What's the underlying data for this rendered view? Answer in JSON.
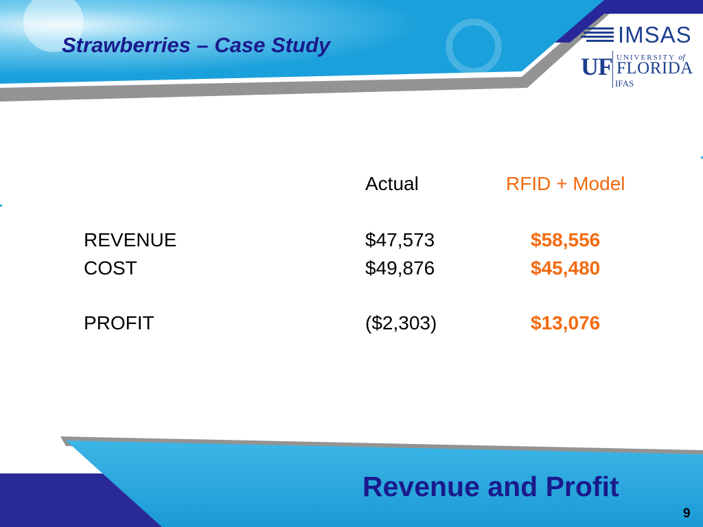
{
  "slide": {
    "title": "Strawberries – Case Study",
    "footer_title": "Revenue and Profit",
    "page_number": "9"
  },
  "logos": {
    "imsas": "IMSAS",
    "uf_mark": "UF",
    "uf_university": "UNIVERSITY",
    "uf_of": "of",
    "uf_florida": "FLORIDA",
    "uf_ifas": "IFAS"
  },
  "table": {
    "columns": [
      "Actual",
      "RFID + Model"
    ],
    "rows": [
      {
        "label": "REVENUE",
        "actual": "$47,573",
        "model": "$58,556"
      },
      {
        "label": "COST",
        "actual": "$49,876",
        "model": "$45,480"
      },
      {
        "label": "PROFIT",
        "actual": "($2,303)",
        "model": "$13,076"
      }
    ]
  },
  "colors": {
    "title": "#1a1a8c",
    "banner_blue": "#29a8df",
    "footer_navy": "#2a2a96",
    "highlight_orange": "#f26a10"
  }
}
